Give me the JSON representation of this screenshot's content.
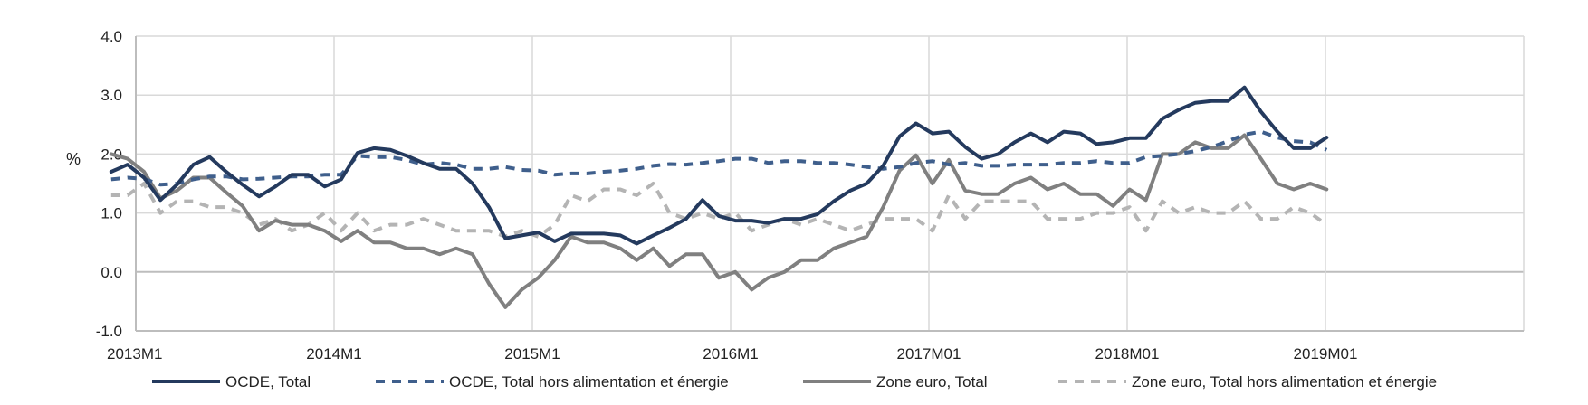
{
  "chart_data": {
    "type": "line",
    "title": "",
    "xlabel": "",
    "ylabel": "%",
    "ylim": [
      -1.0,
      4.0
    ],
    "yticks": [
      "4.0",
      "3.0",
      "2.0",
      "1.0",
      "0.0",
      "-1.0"
    ],
    "xtick_labels": [
      "2013M1",
      "2014M1",
      "2015M1",
      "2016M1",
      "2017M01",
      "2018M01",
      "2019M01"
    ],
    "grid": true,
    "legend_position": "bottom",
    "x_start": "2013-01",
    "x_end": "2019-03",
    "series": [
      {
        "name": "OCDE, Total",
        "color": "#243a5e",
        "dash": "solid",
        "values": [
          1.7,
          1.82,
          1.6,
          1.22,
          1.48,
          1.82,
          1.95,
          1.7,
          1.48,
          1.28,
          1.45,
          1.65,
          1.65,
          1.45,
          1.57,
          2.02,
          2.1,
          2.07,
          1.97,
          1.85,
          1.75,
          1.75,
          1.5,
          1.1,
          0.57,
          0.62,
          0.67,
          0.52,
          0.65,
          0.65,
          0.65,
          0.62,
          0.48,
          0.62,
          0.75,
          0.9,
          1.22,
          0.95,
          0.87,
          0.87,
          0.83,
          0.9,
          0.9,
          0.98,
          1.2,
          1.38,
          1.5,
          1.8,
          2.3,
          2.52,
          2.35,
          2.38,
          2.12,
          1.92,
          2.0,
          2.2,
          2.35,
          2.2,
          2.38,
          2.35,
          2.17,
          2.2,
          2.27,
          2.27,
          2.6,
          2.75,
          2.87,
          2.9,
          2.9,
          3.13,
          2.72,
          2.38,
          2.1,
          2.1,
          2.28
        ]
      },
      {
        "name": "OCDE, Total hors alimentation et énergie",
        "color": "#3f5f8c",
        "dash": "dashed",
        "values": [
          1.57,
          1.6,
          1.58,
          1.48,
          1.5,
          1.57,
          1.62,
          1.62,
          1.57,
          1.58,
          1.6,
          1.62,
          1.62,
          1.65,
          1.65,
          1.97,
          1.95,
          1.95,
          1.9,
          1.82,
          1.85,
          1.82,
          1.75,
          1.75,
          1.78,
          1.73,
          1.72,
          1.65,
          1.67,
          1.67,
          1.7,
          1.72,
          1.75,
          1.8,
          1.83,
          1.82,
          1.85,
          1.88,
          1.92,
          1.92,
          1.85,
          1.88,
          1.88,
          1.85,
          1.85,
          1.82,
          1.78,
          1.75,
          1.78,
          1.85,
          1.88,
          1.82,
          1.85,
          1.8,
          1.8,
          1.82,
          1.82,
          1.82,
          1.85,
          1.85,
          1.88,
          1.85,
          1.85,
          1.95,
          1.97,
          2.0,
          2.05,
          2.12,
          2.22,
          2.33,
          2.38,
          2.28,
          2.22,
          2.2,
          2.07
        ]
      },
      {
        "name": "Zone euro, Total",
        "color": "#808080",
        "dash": "solid",
        "values": [
          2.0,
          1.92,
          1.7,
          1.25,
          1.38,
          1.6,
          1.6,
          1.35,
          1.12,
          0.7,
          0.87,
          0.8,
          0.8,
          0.7,
          0.52,
          0.7,
          0.5,
          0.5,
          0.4,
          0.4,
          0.3,
          0.4,
          0.3,
          -0.2,
          -0.6,
          -0.3,
          -0.1,
          0.2,
          0.6,
          0.5,
          0.5,
          0.4,
          0.2,
          0.4,
          0.1,
          0.3,
          0.3,
          -0.1,
          0.0,
          -0.3,
          -0.1,
          0.0,
          0.2,
          0.2,
          0.4,
          0.5,
          0.6,
          1.1,
          1.72,
          1.98,
          1.5,
          1.9,
          1.38,
          1.32,
          1.32,
          1.5,
          1.6,
          1.4,
          1.5,
          1.32,
          1.32,
          1.12,
          1.4,
          1.22,
          2.0,
          2.0,
          2.2,
          2.1,
          2.1,
          2.32,
          1.92,
          1.5,
          1.4,
          1.5,
          1.4
        ]
      },
      {
        "name": "Zone euro, Total hors alimentation et énergie",
        "color": "#b4b4b4",
        "dash": "dashed",
        "values": [
          1.3,
          1.3,
          1.5,
          1.0,
          1.2,
          1.2,
          1.1,
          1.1,
          1.0,
          0.8,
          0.9,
          0.7,
          0.8,
          1.0,
          0.7,
          1.0,
          0.7,
          0.8,
          0.8,
          0.9,
          0.8,
          0.7,
          0.7,
          0.7,
          0.6,
          0.7,
          0.6,
          0.8,
          1.3,
          1.2,
          1.4,
          1.4,
          1.3,
          1.5,
          1.0,
          0.9,
          1.0,
          0.9,
          1.0,
          0.7,
          0.8,
          0.9,
          0.8,
          0.9,
          0.8,
          0.7,
          0.8,
          0.9,
          0.9,
          0.9,
          0.7,
          1.3,
          0.9,
          1.2,
          1.2,
          1.2,
          1.2,
          0.9,
          0.9,
          0.9,
          1.0,
          1.0,
          1.1,
          0.7,
          1.2,
          1.0,
          1.1,
          1.0,
          1.0,
          1.2,
          0.9,
          0.9,
          1.1,
          1.0,
          0.8
        ]
      }
    ]
  }
}
